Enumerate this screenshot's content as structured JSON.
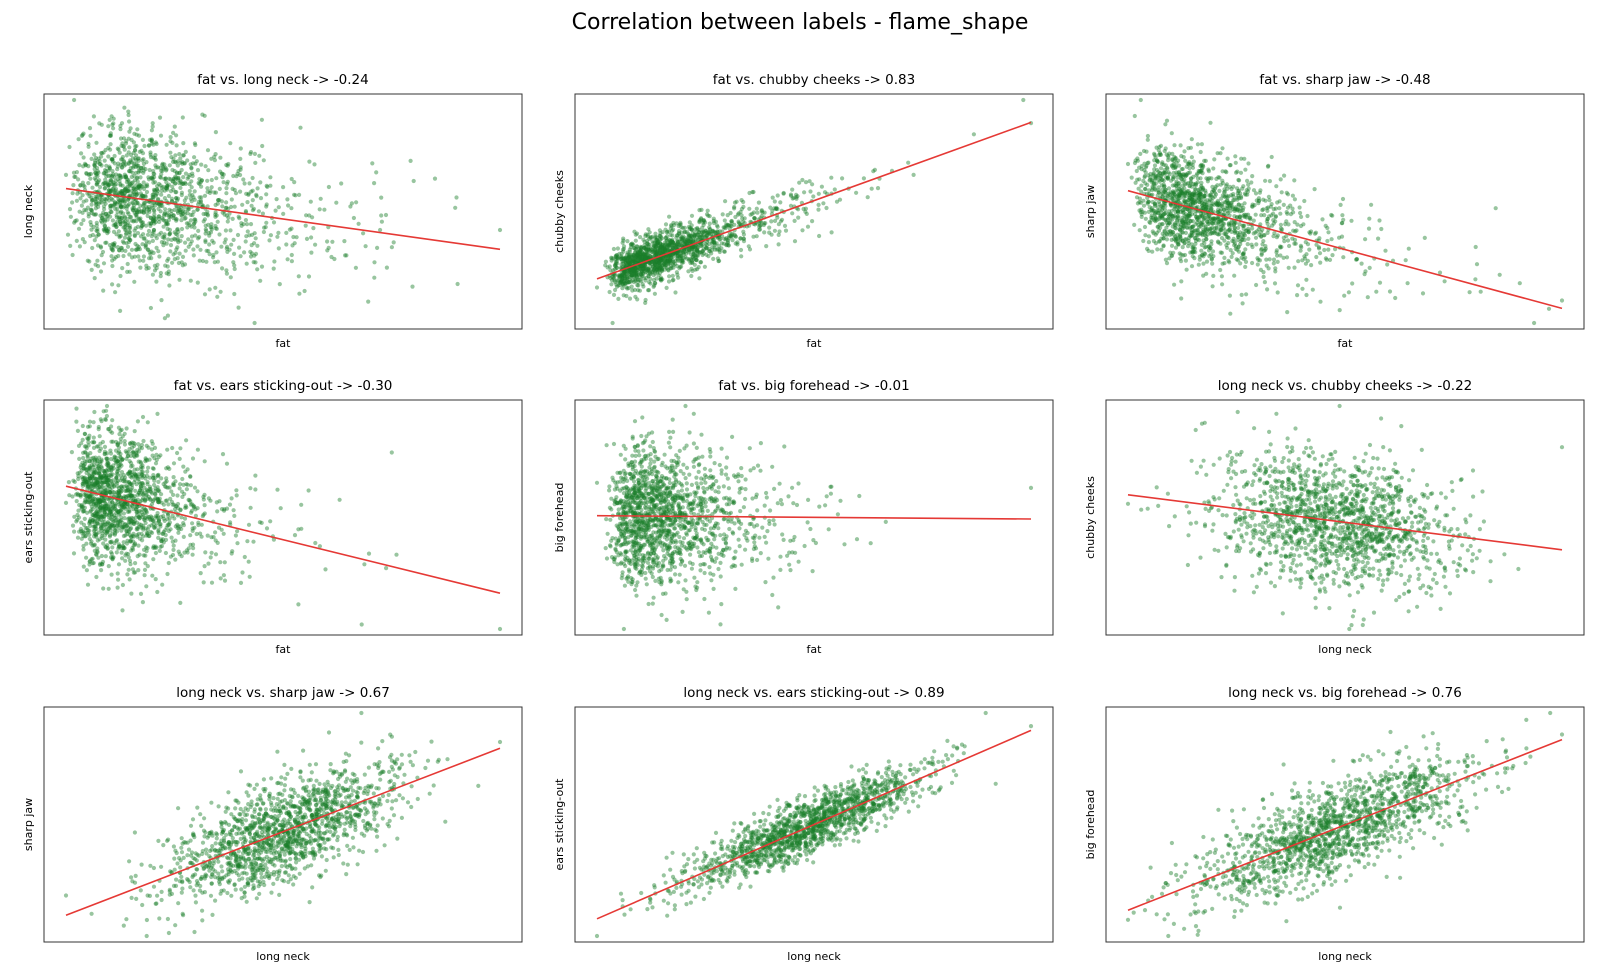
{
  "figure": {
    "title": "Correlation between labels - flame_shape"
  },
  "colors": {
    "points": "#1a7f2a",
    "fit_line": "#e53935",
    "frame": "#333333"
  },
  "chart_data": [
    {
      "type": "scatter",
      "title": "fat vs. long neck -> -0.24",
      "xlabel": "fat",
      "ylabel": "long neck",
      "correlation": -0.24,
      "points": 1500
    },
    {
      "type": "scatter",
      "title": "fat vs. chubby cheeks -> 0.83",
      "xlabel": "fat",
      "ylabel": "chubby cheeks",
      "correlation": 0.83,
      "points": 1500
    },
    {
      "type": "scatter",
      "title": "fat vs. sharp jaw -> -0.48",
      "xlabel": "fat",
      "ylabel": "sharp jaw",
      "correlation": -0.48,
      "points": 1500
    },
    {
      "type": "scatter",
      "title": "fat vs. ears sticking-out -> -0.30",
      "xlabel": "fat",
      "ylabel": "ears sticking-out",
      "correlation": -0.3,
      "points": 1500
    },
    {
      "type": "scatter",
      "title": "fat vs. big forehead -> -0.01",
      "xlabel": "fat",
      "ylabel": "big forehead",
      "correlation": -0.01,
      "points": 1500
    },
    {
      "type": "scatter",
      "title": "long neck vs. chubby cheeks -> -0.22",
      "xlabel": "long neck",
      "ylabel": "chubby cheeks",
      "correlation": -0.22,
      "points": 1500
    },
    {
      "type": "scatter",
      "title": "long neck vs. sharp jaw -> 0.67",
      "xlabel": "long neck",
      "ylabel": "sharp jaw",
      "correlation": 0.67,
      "points": 1500
    },
    {
      "type": "scatter",
      "title": "long neck vs. ears sticking-out -> 0.89",
      "xlabel": "long neck",
      "ylabel": "ears sticking-out",
      "correlation": 0.89,
      "points": 1500
    },
    {
      "type": "scatter",
      "title": "long neck vs. big forehead -> 0.76",
      "xlabel": "long neck",
      "ylabel": "big forehead",
      "correlation": 0.76,
      "points": 1500
    }
  ]
}
